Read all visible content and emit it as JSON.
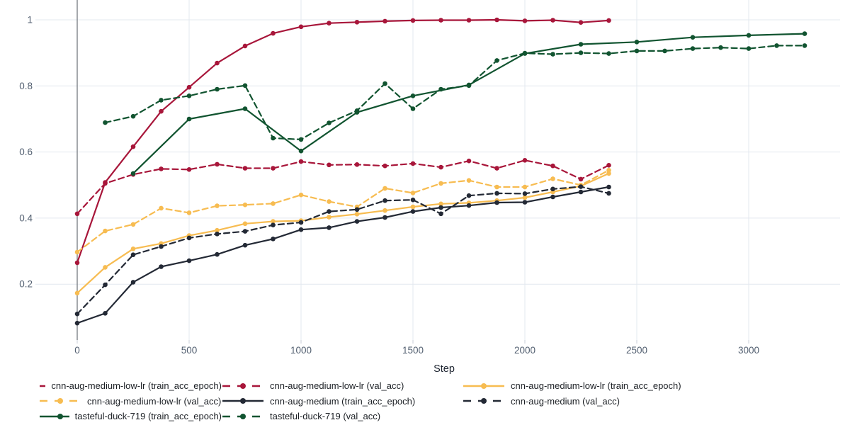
{
  "chart_data": {
    "type": "line",
    "title": "",
    "xlabel": "Step",
    "ylabel": "",
    "grid": true,
    "legend_position": "bottom",
    "x_range": [
      -190,
      3400
    ],
    "y_range": [
      0.03,
      1.06
    ],
    "x_ticks": [
      {
        "label": "0",
        "value": 0
      },
      {
        "label": "500",
        "value": 500
      },
      {
        "label": "1000",
        "value": 1000
      },
      {
        "label": "1500",
        "value": 1500
      },
      {
        "label": "2000",
        "value": 2000
      },
      {
        "label": "2500",
        "value": 2500
      },
      {
        "label": "3000",
        "value": 3000
      }
    ],
    "y_ticks": [
      {
        "label": "1",
        "value": 1
      },
      {
        "label": "0.8",
        "value": 0.8
      },
      {
        "label": "0.6",
        "value": 0.6
      },
      {
        "label": "0.4",
        "value": 0.4
      },
      {
        "label": "0.2",
        "value": 0.2
      }
    ],
    "colors": {
      "crimson": "#A8163A",
      "amber": "#F7BC51",
      "charcoal": "#232935",
      "forest_green": "#115430",
      "gridline": "#E3E8EF",
      "zeroline": "#75797F",
      "tick_text": "#525F70",
      "axis_title_text": "#1D2430"
    },
    "series": [
      {
        "name": "cnn-aug-medium-low-lr (train_acc_epoch)",
        "color": "#A8163A",
        "line_style": "solid",
        "x": [
          0,
          125,
          250,
          375,
          500,
          625,
          750,
          875,
          1000,
          1125,
          1250,
          1375,
          1500,
          1625,
          1750,
          1875,
          2000,
          2125,
          2250,
          2375
        ],
        "y": [
          0.265,
          0.508,
          0.616,
          0.723,
          0.796,
          0.869,
          0.921,
          0.959,
          0.979,
          0.99,
          0.993,
          0.996,
          0.998,
          0.999,
          0.999,
          1.0,
          0.997,
          0.999,
          0.992,
          0.998
        ]
      },
      {
        "name": "cnn-aug-medium-low-lr (val_acc)",
        "color": "#A8163A",
        "line_style": "dashed",
        "x": [
          0,
          125,
          250,
          375,
          500,
          625,
          750,
          875,
          1000,
          1125,
          1250,
          1375,
          1500,
          1625,
          1750,
          1875,
          2000,
          2125,
          2250,
          2375
        ],
        "y": [
          0.413,
          0.505,
          0.532,
          0.549,
          0.547,
          0.563,
          0.551,
          0.551,
          0.571,
          0.561,
          0.562,
          0.558,
          0.565,
          0.554,
          0.573,
          0.551,
          0.575,
          0.558,
          0.518,
          0.56
        ]
      },
      {
        "name": "cnn-aug-medium-low-lr (train_acc_epoch)",
        "color": "#F7BC51",
        "line_style": "solid",
        "x": [
          0,
          125,
          250,
          375,
          500,
          625,
          750,
          875,
          1000,
          1125,
          1250,
          1375,
          1500,
          1625,
          1750,
          1875,
          2000,
          2125,
          2250,
          2375
        ],
        "y": [
          0.173,
          0.251,
          0.307,
          0.323,
          0.347,
          0.363,
          0.383,
          0.39,
          0.392,
          0.403,
          0.412,
          0.423,
          0.434,
          0.443,
          0.446,
          0.453,
          0.462,
          0.479,
          0.497,
          0.535
        ]
      },
      {
        "name": "cnn-aug-medium-low-lr (val_acc)",
        "color": "#F7BC51",
        "line_style": "dashed",
        "x": [
          0,
          125,
          250,
          375,
          500,
          625,
          750,
          875,
          1000,
          1125,
          1250,
          1375,
          1500,
          1625,
          1750,
          1875,
          2000,
          2125,
          2250,
          2375
        ],
        "y": [
          0.297,
          0.361,
          0.381,
          0.43,
          0.416,
          0.437,
          0.44,
          0.444,
          0.47,
          0.45,
          0.434,
          0.49,
          0.476,
          0.505,
          0.514,
          0.494,
          0.494,
          0.519,
          0.5,
          0.545
        ]
      },
      {
        "name": "cnn-aug-medium (train_acc_epoch)",
        "color": "#232935",
        "line_style": "solid",
        "x": [
          0,
          125,
          250,
          375,
          500,
          625,
          750,
          875,
          1000,
          1125,
          1250,
          1375,
          1500,
          1625,
          1750,
          1875,
          2000,
          2125,
          2250,
          2375
        ],
        "y": [
          0.082,
          0.112,
          0.206,
          0.253,
          0.271,
          0.29,
          0.318,
          0.337,
          0.365,
          0.371,
          0.39,
          0.402,
          0.42,
          0.432,
          0.438,
          0.447,
          0.448,
          0.464,
          0.479,
          0.494
        ]
      },
      {
        "name": "cnn-aug-medium (val_acc)",
        "color": "#232935",
        "line_style": "dashed",
        "x": [
          0,
          125,
          250,
          375,
          500,
          625,
          750,
          875,
          1000,
          1125,
          1250,
          1375,
          1500,
          1625,
          1750,
          1875,
          2000,
          2125,
          2250,
          2375
        ],
        "y": [
          0.11,
          0.198,
          0.289,
          0.314,
          0.34,
          0.352,
          0.36,
          0.379,
          0.387,
          0.42,
          0.426,
          0.453,
          0.455,
          0.413,
          0.468,
          0.475,
          0.474,
          0.488,
          0.495,
          0.475
        ]
      },
      {
        "name": "tasteful-duck-719 (train_acc_epoch)",
        "color": "#115430",
        "line_style": "solid",
        "x": [
          250,
          500,
          750,
          1000,
          1250,
          1500,
          1750,
          2000,
          2250,
          2500,
          2750,
          3000,
          3250
        ],
        "y": [
          0.535,
          0.7,
          0.731,
          0.603,
          0.72,
          0.77,
          0.803,
          0.898,
          0.926,
          0.933,
          0.947,
          0.953,
          0.958
        ]
      },
      {
        "name": "tasteful-duck-719 (val_acc)",
        "color": "#115430",
        "line_style": "dashed",
        "x": [
          125,
          250,
          375,
          500,
          625,
          750,
          875,
          1000,
          1125,
          1250,
          1375,
          1500,
          1625,
          1750,
          1875,
          2000,
          2125,
          2250,
          2375,
          2500,
          2625,
          2750,
          2875,
          3000,
          3125,
          3250
        ],
        "y": [
          0.689,
          0.708,
          0.757,
          0.77,
          0.79,
          0.801,
          0.642,
          0.638,
          0.688,
          0.725,
          0.807,
          0.731,
          0.79,
          0.801,
          0.877,
          0.899,
          0.896,
          0.9,
          0.898,
          0.906,
          0.906,
          0.913,
          0.916,
          0.913,
          0.922,
          0.922
        ]
      }
    ]
  }
}
